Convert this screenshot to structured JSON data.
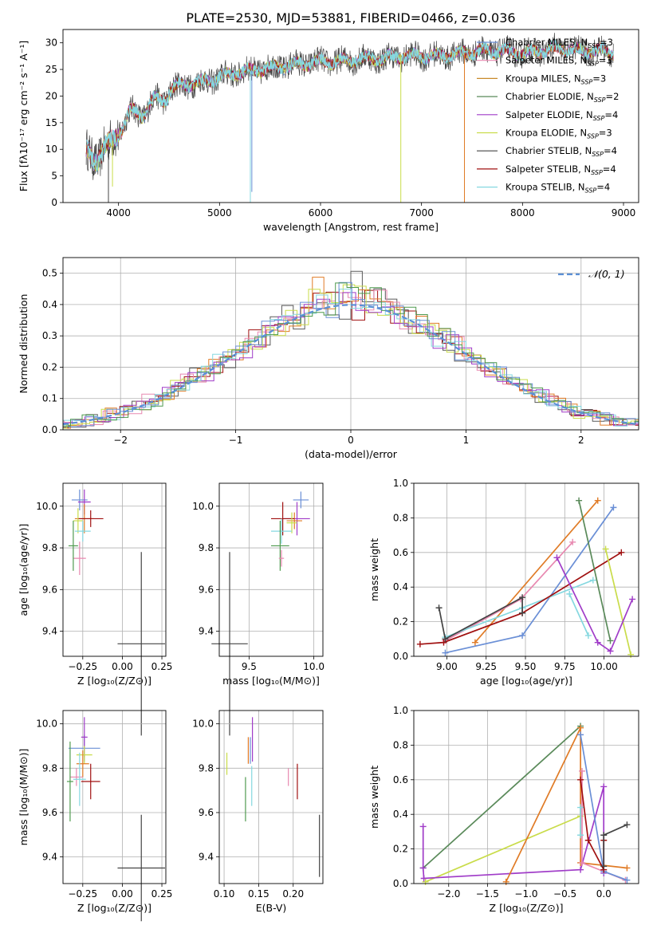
{
  "title": "PLATE=2530, MJD=53881, FIBERID=0466, z=0.036",
  "colors": [
    "#6a8fd6",
    "#e07b26",
    "#4f9a4f",
    "#a03cc8",
    "#e888b0",
    "#7a7a7a",
    "#c9dc4a",
    "#85d8e0",
    "#444444",
    "#a01010",
    "#5a8a5a"
  ],
  "spectrum": {
    "type": "line",
    "xlabel": "wavelength [Angstrom, rest frame]",
    "ylabel": "Flux [fλ10⁻¹⁷ erg cm⁻² s⁻¹ A⁻¹]",
    "xlim": [
      3450,
      9150
    ],
    "ylim": [
      0,
      32.5
    ],
    "xticks": [
      "4000",
      "5000",
      "6000",
      "7000",
      "8000",
      "9000"
    ],
    "yticks": [
      "0",
      "5",
      "10",
      "15",
      "20",
      "25",
      "30"
    ],
    "legend": [
      {
        "name": "Chabrier MILES, N_SSP=3",
        "color": "#6a8fd6"
      },
      {
        "name": "Salpeter MILES, N_SSP=3",
        "color": "#e888b0"
      },
      {
        "name": "Kroupa MILES, N_SSP=3",
        "color": "#c98a2a"
      },
      {
        "name": "Chabrier ELODIE, N_SSP=2",
        "color": "#5a8a5a"
      },
      {
        "name": "Salpeter ELODIE, N_SSP=4",
        "color": "#a03cc8"
      },
      {
        "name": "Kroupa ELODIE, N_SSP=3",
        "color": "#c9dc4a"
      },
      {
        "name": "Chabrier STELIB, N_SSP=4",
        "color": "#444444"
      },
      {
        "name": "Salpeter STELIB, N_SSP=4",
        "color": "#a01010"
      },
      {
        "name": "Kroupa STELIB, N_SSP=4",
        "color": "#85d8e0"
      }
    ],
    "envelope_x": [
      3680,
      3800,
      3900,
      4000,
      4100,
      4200,
      4300,
      4400,
      4500,
      4600,
      4800,
      5000,
      5200,
      5400,
      5600,
      5800,
      6000,
      6200,
      6400,
      6600,
      6800,
      7000,
      7200,
      7400,
      7600,
      7800,
      8000,
      8200,
      8400,
      8600,
      8800,
      8900
    ],
    "envelope_y": [
      9,
      9,
      10,
      14,
      16,
      17,
      18,
      19,
      21,
      22,
      22.5,
      23.5,
      24.5,
      25,
      25.5,
      26,
      26.5,
      26.5,
      27,
      27,
      27.5,
      27.5,
      27.5,
      28,
      28.5,
      28.5,
      28,
      28.5,
      29,
      28.5,
      28.5,
      28
    ]
  },
  "histogram": {
    "type": "bar",
    "xlabel": "(data-model)/error",
    "ylabel": "Normed distribution",
    "xlim": [
      -2.5,
      2.5
    ],
    "ylim": [
      0,
      0.55
    ],
    "xticks": [
      "−2",
      "−1",
      "0",
      "1",
      "2"
    ],
    "yticks": [
      "0.0",
      "0.1",
      "0.2",
      "0.3",
      "0.4",
      "0.5"
    ],
    "legend": "𝒩(0, 1)",
    "line_color": "#5a8fd6"
  },
  "age_vs_Z": {
    "xlabel": "Z [log₁₀(Z/Z⊙)]",
    "ylabel": "age  [log₁₀(age/yr)]",
    "xlim": [
      -0.375,
      0.275
    ],
    "ylim": [
      9.28,
      10.11
    ],
    "xticks": [
      "−0.25",
      "0.00",
      "0.25"
    ],
    "yticks": [
      "9.4",
      "9.6",
      "9.8",
      "10.0"
    ],
    "points": [
      {
        "x": -0.27,
        "y": 10.03,
        "xe": 0.05,
        "ye": 0.05,
        "c": "#6a8fd6"
      },
      {
        "x": -0.24,
        "y": 10.02,
        "xe": 0.04,
        "ye": 0.06,
        "c": "#a03cc8"
      },
      {
        "x": -0.24,
        "y": 9.94,
        "xe": 0.06,
        "ye": 0.07,
        "c": "#e07b26"
      },
      {
        "x": -0.2,
        "y": 9.94,
        "xe": 0.08,
        "ye": 0.04,
        "c": "#a01010"
      },
      {
        "x": -0.28,
        "y": 9.93,
        "xe": 0.03,
        "ye": 0.06,
        "c": "#c9dc4a"
      },
      {
        "x": -0.25,
        "y": 9.88,
        "xe": 0.05,
        "ye": 0.05,
        "c": "#85d8e0"
      },
      {
        "x": -0.27,
        "y": 9.75,
        "xe": 0.04,
        "ye": 0.08,
        "c": "#e888b0"
      },
      {
        "x": -0.31,
        "y": 9.81,
        "xe": 0.03,
        "ye": 0.12,
        "c": "#4f9a4f"
      },
      {
        "x": 0.12,
        "y": 9.34,
        "xe": 0.15,
        "ye": 0.44,
        "c": "#444444"
      }
    ]
  },
  "age_vs_mass": {
    "xlabel": "mass [log₁₀(M/M⊙)]",
    "ylabel": "",
    "xlim": [
      9.27,
      10.07
    ],
    "ylim": [
      9.28,
      10.11
    ],
    "xticks": [
      "9.5",
      "10.0"
    ],
    "yticks": [
      "9.4",
      "9.6",
      "9.8",
      "10.0"
    ],
    "points": [
      {
        "x": 9.9,
        "y": 10.03,
        "xe": 0.06,
        "ye": 0.04,
        "c": "#6a8fd6"
      },
      {
        "x": 9.87,
        "y": 9.94,
        "xe": 0.1,
        "ye": 0.08,
        "c": "#a03cc8"
      },
      {
        "x": 9.85,
        "y": 9.93,
        "xe": 0.06,
        "ye": 0.04,
        "c": "#e07b26"
      },
      {
        "x": 9.76,
        "y": 9.94,
        "xe": 0.09,
        "ye": 0.08,
        "c": "#a01010"
      },
      {
        "x": 9.83,
        "y": 9.92,
        "xe": 0.04,
        "ye": 0.05,
        "c": "#c9dc4a"
      },
      {
        "x": 9.75,
        "y": 9.88,
        "xe": 0.08,
        "ye": 0.06,
        "c": "#85d8e0"
      },
      {
        "x": 9.74,
        "y": 9.81,
        "xe": 0.07,
        "ye": 0.12,
        "c": "#4f9a4f"
      },
      {
        "x": 9.75,
        "y": 9.75,
        "xe": 0.02,
        "ye": 0.04,
        "c": "#e888b0"
      },
      {
        "x": 9.35,
        "y": 9.34,
        "xe": 0.14,
        "ye": 0.44,
        "c": "#444444"
      }
    ]
  },
  "weight_vs_age": {
    "xlabel": "age  [log₁₀(age/yr)]",
    "ylabel": "mass weight",
    "xlim": [
      8.79,
      10.22
    ],
    "ylim": [
      0,
      1.0
    ],
    "xticks": [
      "9.00",
      "9.25",
      "9.50",
      "9.75",
      "10.00"
    ],
    "yticks": [
      "0.0",
      "0.2",
      "0.4",
      "0.6",
      "0.8",
      "1.0"
    ],
    "series": [
      {
        "c": "#6a8fd6",
        "x": [
          8.99,
          9.48,
          10.06
        ],
        "y": [
          0.02,
          0.12,
          0.86
        ]
      },
      {
        "c": "#e07b26",
        "x": [
          9.18,
          9.96
        ],
        "y": [
          0.08,
          0.9
        ]
      },
      {
        "c": "#e888b0",
        "x": [
          8.99,
          9.47,
          9.8
        ],
        "y": [
          0.09,
          0.33,
          0.66
        ]
      },
      {
        "c": "#85d8e0",
        "x": [
          8.99,
          9.48,
          9.93
        ],
        "y": [
          0.11,
          0.28,
          0.44
        ]
      },
      {
        "c": "#a01010",
        "x": [
          8.83,
          8.98,
          9.48,
          10.11
        ],
        "y": [
          0.07,
          0.08,
          0.25,
          0.6
        ]
      },
      {
        "c": "#444444",
        "x": [
          8.95,
          8.99,
          9.48,
          9.48
        ],
        "y": [
          0.28,
          0.1,
          0.34,
          0.25
        ]
      },
      {
        "c": "#5a8a5a",
        "x": [
          9.84,
          10.04
        ],
        "y": [
          0.9,
          0.09
        ]
      },
      {
        "c": "#c9dc4a",
        "x": [
          10.01,
          10.17
        ],
        "y": [
          0.62,
          0.01
        ]
      },
      {
        "c": "#a03cc8",
        "x": [
          9.7,
          9.96,
          10.04,
          10.18
        ],
        "y": [
          0.57,
          0.08,
          0.03,
          0.33
        ]
      },
      {
        "c": "#85d8e0",
        "x": [
          9.78,
          9.9
        ],
        "y": [
          0.36,
          0.12
        ]
      }
    ]
  },
  "mass_vs_Z": {
    "xlabel": "Z [log₁₀(Z/Z⊙)]",
    "ylabel": "mass [log₁₀(M/M⊙)]",
    "xlim": [
      -0.375,
      0.275
    ],
    "ylim": [
      9.28,
      10.06
    ],
    "xticks": [
      "−0.25",
      "0.00",
      "0.25"
    ],
    "yticks": [
      "9.4",
      "9.6",
      "9.8",
      "10.0"
    ],
    "points": [
      {
        "x": -0.24,
        "y": 9.89,
        "xe": 0.1,
        "ye": 0.06,
        "c": "#6a8fd6"
      },
      {
        "x": -0.24,
        "y": 9.94,
        "xe": 0.02,
        "ye": 0.09,
        "c": "#a03cc8"
      },
      {
        "x": -0.24,
        "y": 9.86,
        "xe": 0.05,
        "ye": 0.04,
        "c": "#c9dc4a"
      },
      {
        "x": -0.25,
        "y": 9.82,
        "xe": 0.04,
        "ye": 0.06,
        "c": "#e07b26"
      },
      {
        "x": -0.29,
        "y": 9.76,
        "xe": 0.04,
        "ye": 0.04,
        "c": "#e888b0"
      },
      {
        "x": -0.27,
        "y": 9.75,
        "xe": 0.04,
        "ye": 0.12,
        "c": "#85d8e0"
      },
      {
        "x": -0.2,
        "y": 9.74,
        "xe": 0.06,
        "ye": 0.08,
        "c": "#a01010"
      },
      {
        "x": -0.33,
        "y": 9.74,
        "xe": 0.02,
        "ye": 0.18,
        "c": "#4f9a4f"
      },
      {
        "x": 0.12,
        "y": 9.35,
        "xe": 0.15,
        "ye": 0.24,
        "c": "#444444"
      }
    ]
  },
  "mass_vs_EBV": {
    "xlabel": "E(B-V)",
    "ylabel": "",
    "xlim": [
      0.093,
      0.243
    ],
    "ylim": [
      9.28,
      10.06
    ],
    "xticks": [
      "0.10",
      "0.15",
      "0.20"
    ],
    "yticks": [
      "9.4",
      "9.6",
      "9.8",
      "10.0"
    ],
    "points": [
      {
        "x": 0.104,
        "y": 9.82,
        "xe": 0,
        "ye": 0.05,
        "c": "#c9dc4a"
      },
      {
        "x": 0.135,
        "y": 9.88,
        "xe": 0,
        "ye": 0.06,
        "c": "#e07b26"
      },
      {
        "x": 0.138,
        "y": 9.88,
        "xe": 0,
        "ye": 0.06,
        "c": "#6a8fd6"
      },
      {
        "x": 0.141,
        "y": 9.93,
        "xe": 0,
        "ye": 0.1,
        "c": "#a03cc8"
      },
      {
        "x": 0.131,
        "y": 9.66,
        "xe": 0,
        "ye": 0.1,
        "c": "#4f9a4f"
      },
      {
        "x": 0.14,
        "y": 9.72,
        "xe": 0,
        "ye": 0.09,
        "c": "#85d8e0"
      },
      {
        "x": 0.193,
        "y": 9.76,
        "xe": 0,
        "ye": 0.04,
        "c": "#e888b0"
      },
      {
        "x": 0.206,
        "y": 9.74,
        "xe": 0,
        "ye": 0.08,
        "c": "#a01010"
      },
      {
        "x": 0.238,
        "y": 9.45,
        "xe": 0,
        "ye": 0.14,
        "c": "#444444"
      }
    ]
  },
  "weight_vs_Z": {
    "xlabel": "Z [log₁₀(Z/Z⊙)]",
    "ylabel": "mass weight",
    "xlim": [
      -2.45,
      0.45
    ],
    "ylim": [
      0,
      1.0
    ],
    "xticks": [
      "−2.0",
      "−1.5",
      "−1.0",
      "−0.5",
      "0.0"
    ],
    "yticks": [
      "0.0",
      "0.2",
      "0.4",
      "0.6",
      "0.8",
      "1.0"
    ],
    "series": [
      {
        "c": "#5a8a5a",
        "x": [
          -2.33,
          -0.3
        ],
        "y": [
          0.09,
          0.91
        ]
      },
      {
        "c": "#c9dc4a",
        "x": [
          -2.3,
          -0.3
        ],
        "y": [
          0.01,
          0.39
        ]
      },
      {
        "c": "#a03cc8",
        "x": [
          -2.33,
          -2.33,
          -2.32,
          -0.3,
          0.0,
          0.0
        ],
        "y": [
          0.33,
          0.09,
          0.03,
          0.08,
          0.56,
          0.06
        ]
      },
      {
        "c": "#e07b26",
        "x": [
          -1.26,
          -0.3,
          -0.3,
          0.3
        ],
        "y": [
          0.01,
          0.9,
          0.12,
          0.09
        ]
      },
      {
        "c": "#e888b0",
        "x": [
          -0.28,
          -0.28,
          0.28
        ],
        "y": [
          0.65,
          0.12,
          0.02
        ]
      },
      {
        "c": "#6a8fd6",
        "x": [
          -0.3,
          0.0,
          0.3
        ],
        "y": [
          0.86,
          0.07,
          0.02
        ]
      },
      {
        "c": "#85d8e0",
        "x": [
          -0.3,
          -0.3
        ],
        "y": [
          0.44,
          0.28
        ]
      },
      {
        "c": "#a01010",
        "x": [
          -0.3,
          -0.2,
          0.0,
          0.0
        ],
        "y": [
          0.6,
          0.25,
          0.08,
          0.25
        ]
      },
      {
        "c": "#444444",
        "x": [
          0.0,
          0.0,
          0.3
        ],
        "y": [
          0.1,
          0.28,
          0.34
        ]
      }
    ]
  }
}
